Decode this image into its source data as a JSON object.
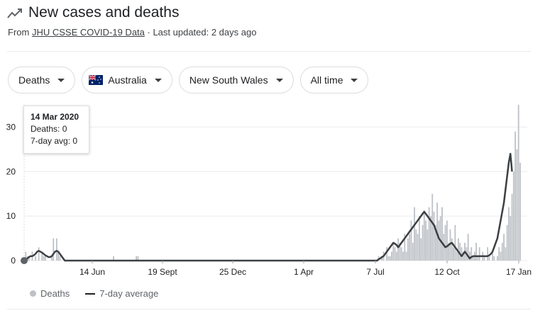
{
  "header": {
    "icon": "trending-line-icon",
    "title": "New cases and deaths",
    "source_prefix": "From ",
    "source_link": "JHU CSSE COVID-19 Data",
    "updated": " · Last updated: 2 days ago"
  },
  "filters": {
    "metric": "Deaths",
    "country": "Australia",
    "region": "New South Wales",
    "range": "All time"
  },
  "tooltip": {
    "date": "14 Mar 2020",
    "deaths": "Deaths: 0",
    "avg": "7-day avg: 0"
  },
  "legend": {
    "deaths": "Deaths",
    "avg": "7-day average"
  },
  "colors": {
    "bars": "#bdc1c6",
    "line": "#3c4043",
    "grid": "#ebebeb"
  },
  "chart_data": {
    "type": "bar",
    "ylim": [
      0,
      35
    ],
    "y_ticks": [
      "0",
      "10",
      "20",
      "30"
    ],
    "x_ticks": [
      "14 Jun",
      "19 Sept",
      "25 Dec",
      "1 Apr",
      "7 Jul",
      "12 Oct",
      "17 Jan"
    ],
    "series": [
      {
        "name": "Deaths",
        "values": [
          0,
          2,
          1,
          1,
          0,
          2,
          0,
          1,
          0,
          3,
          0,
          2,
          1,
          1,
          0,
          0,
          0,
          1,
          5,
          0,
          5,
          2,
          1,
          0,
          0,
          0,
          0,
          0,
          0,
          0,
          0,
          0,
          0,
          0,
          0,
          0,
          0,
          0,
          0,
          0,
          0,
          0,
          0,
          0,
          0,
          0,
          0,
          0,
          0,
          0,
          0,
          0,
          0,
          0,
          0,
          1,
          0,
          0,
          0,
          0,
          0,
          0,
          0,
          0,
          0,
          0,
          0,
          0,
          0,
          1,
          1,
          0,
          0,
          0,
          0,
          0,
          0,
          0,
          0,
          0,
          0,
          0,
          0,
          0,
          0,
          0,
          0,
          0,
          0,
          0,
          0,
          0,
          0,
          0,
          0,
          0,
          0,
          0,
          0,
          0,
          0,
          0,
          0,
          0,
          0,
          0,
          0,
          0,
          0,
          0,
          0,
          0,
          0,
          0,
          0,
          0,
          0,
          0,
          0,
          0,
          0,
          0,
          0,
          0,
          0,
          0,
          0,
          0,
          0,
          0,
          0,
          0,
          0,
          0,
          0,
          0,
          0,
          0,
          0,
          0,
          0,
          0,
          0,
          0,
          0,
          0,
          0,
          0,
          0,
          0,
          0,
          0,
          0,
          0,
          0,
          0,
          0,
          0,
          0,
          0,
          0,
          0,
          0,
          0,
          0,
          0,
          0,
          0,
          0,
          0,
          0,
          0,
          0,
          0,
          0,
          0,
          0,
          0,
          0,
          0,
          0,
          0,
          0,
          0,
          0,
          0,
          0,
          0,
          0,
          0,
          0,
          0,
          0,
          0,
          0,
          0,
          0,
          0,
          0,
          0,
          0,
          0,
          0,
          0,
          0,
          0,
          0,
          0,
          0,
          0,
          0,
          0,
          0,
          0,
          0,
          0,
          0,
          0,
          1,
          0,
          1,
          2,
          0,
          3,
          1,
          1,
          2,
          4,
          3,
          2,
          5,
          4,
          3,
          2,
          6,
          2,
          5,
          6,
          9,
          4,
          12,
          7,
          6,
          10,
          5,
          8,
          11,
          9,
          7,
          12,
          10,
          15,
          11,
          8,
          13,
          9,
          10,
          12,
          6,
          8,
          9,
          4,
          7,
          5,
          3,
          8,
          2,
          5,
          4,
          3,
          2,
          4,
          3,
          6,
          2,
          3,
          1,
          2,
          4,
          1,
          3,
          0,
          2,
          1,
          0,
          3,
          1,
          0,
          2,
          1,
          0,
          1,
          3,
          2,
          4,
          6,
          3,
          8,
          12,
          10,
          15,
          20,
          29,
          25,
          35,
          22
        ]
      },
      {
        "name": "7-day average",
        "values": [
          0,
          0,
          0.5,
          0.8,
          1,
          1,
          1.2,
          1.5,
          2,
          2.2,
          2,
          1.8,
          1.5,
          1.2,
          1,
          0.8,
          0.8,
          1,
          1.5,
          2,
          2.2,
          2,
          1.5,
          1,
          0.5,
          0,
          0,
          0,
          0,
          0,
          0,
          0,
          0,
          0,
          0,
          0,
          0,
          0,
          0,
          0,
          0,
          0,
          0,
          0,
          0,
          0,
          0,
          0,
          0,
          0,
          0,
          0,
          0,
          0,
          0,
          0,
          0,
          0,
          0,
          0,
          0,
          0,
          0,
          0,
          0,
          0,
          0,
          0,
          0,
          0,
          0,
          0,
          0,
          0,
          0,
          0,
          0,
          0,
          0,
          0,
          0,
          0,
          0,
          0,
          0,
          0,
          0,
          0,
          0,
          0,
          0,
          0,
          0,
          0,
          0,
          0,
          0,
          0,
          0,
          0,
          0,
          0,
          0,
          0,
          0,
          0,
          0,
          0,
          0,
          0,
          0,
          0,
          0,
          0,
          0,
          0,
          0,
          0,
          0,
          0,
          0,
          0,
          0,
          0,
          0,
          0,
          0,
          0,
          0,
          0,
          0,
          0,
          0,
          0,
          0,
          0,
          0,
          0,
          0,
          0,
          0,
          0,
          0,
          0,
          0,
          0,
          0,
          0,
          0,
          0,
          0,
          0,
          0,
          0,
          0,
          0,
          0,
          0,
          0,
          0,
          0,
          0,
          0,
          0,
          0,
          0,
          0,
          0,
          0,
          0,
          0,
          0,
          0,
          0,
          0,
          0,
          0,
          0,
          0,
          0,
          0,
          0,
          0,
          0,
          0,
          0,
          0,
          0,
          0,
          0,
          0,
          0,
          0,
          0,
          0,
          0,
          0,
          0,
          0,
          0,
          0,
          0,
          0,
          0,
          0,
          0,
          0,
          0,
          0,
          0,
          0,
          0,
          0,
          0,
          0,
          0,
          0,
          0,
          0.3,
          0.5,
          0.8,
          1,
          1.5,
          2,
          2.5,
          3,
          3.5,
          4,
          3.8,
          3.5,
          3,
          3.5,
          4,
          4.5,
          5,
          5.5,
          6,
          6.5,
          7,
          7.5,
          8,
          8.5,
          9,
          9.5,
          10,
          10.5,
          11,
          10.5,
          10,
          9.5,
          9,
          8.5,
          8,
          7,
          6,
          5,
          4.5,
          4,
          3.5,
          3,
          3.2,
          3.5,
          3.8,
          4,
          3.5,
          3,
          2.5,
          2,
          1.5,
          1,
          1.5,
          2,
          1.5,
          1,
          0.5,
          0.8,
          1,
          1,
          1,
          1,
          1,
          1,
          1,
          1,
          1,
          1,
          1.2,
          1.5,
          2,
          3,
          4,
          5,
          7,
          9,
          11,
          13,
          16,
          19,
          22,
          24,
          20
        ]
      }
    ]
  }
}
